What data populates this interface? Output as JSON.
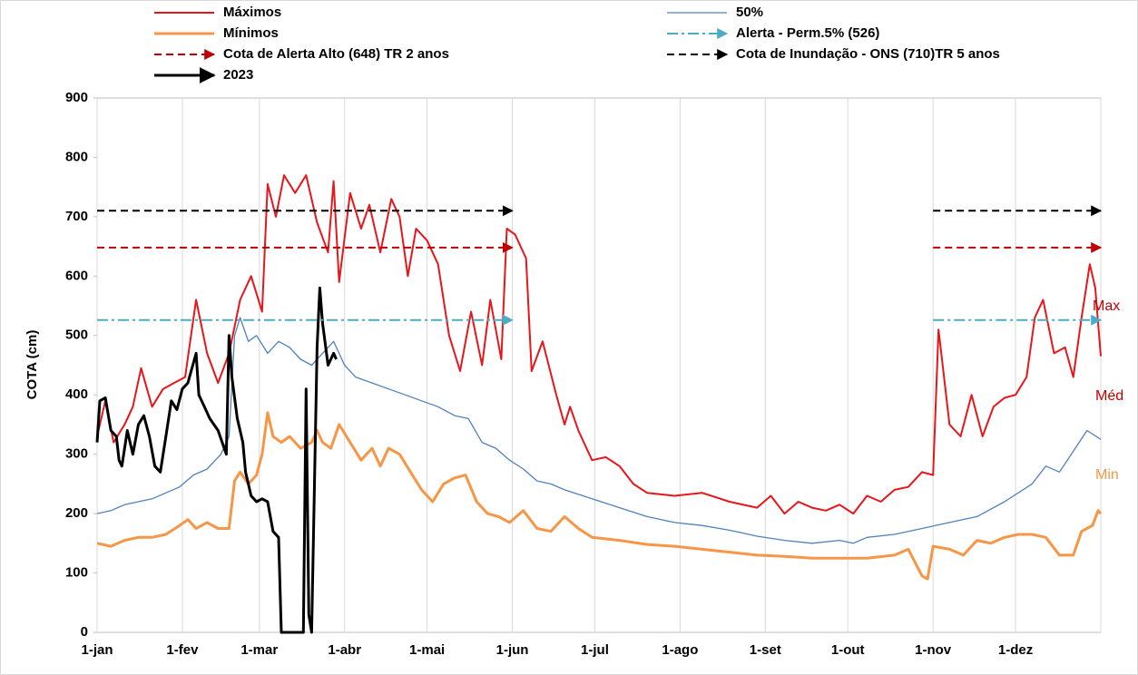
{
  "chart_data": {
    "type": "line",
    "y_label": "COTA (cm)",
    "xlim": [
      0,
      365
    ],
    "xticks": [
      {
        "value": 0,
        "label": "1-jan"
      },
      {
        "value": 31,
        "label": "1-fev"
      },
      {
        "value": 59,
        "label": "1-mar"
      },
      {
        "value": 90,
        "label": "1-abr"
      },
      {
        "value": 120,
        "label": "1-mai"
      },
      {
        "value": 151,
        "label": "1-jun"
      },
      {
        "value": 181,
        "label": "1-jul"
      },
      {
        "value": 212,
        "label": "1-ago"
      },
      {
        "value": 243,
        "label": "1-set"
      },
      {
        "value": 273,
        "label": "1-out"
      },
      {
        "value": 304,
        "label": "1-nov"
      },
      {
        "value": 334,
        "label": "1-dez"
      },
      {
        "value": 365,
        "label": ""
      }
    ],
    "ylim": [
      0,
      900
    ],
    "yticks": [
      0,
      100,
      200,
      300,
      400,
      500,
      600,
      700,
      800,
      900
    ],
    "grid": "vertical",
    "annotations": [
      "Max",
      "Méd",
      "Min"
    ],
    "series": [
      {
        "name": "Máximos",
        "color": "#e8161b",
        "dash": "solid",
        "linewidth": 2,
        "x": [
          0,
          3,
          6,
          10,
          13,
          16,
          20,
          24,
          28,
          32,
          36,
          40,
          44,
          48,
          52,
          56,
          60,
          62,
          65,
          68,
          72,
          76,
          80,
          84,
          86,
          88,
          92,
          96,
          99,
          103,
          107,
          110,
          113,
          116,
          120,
          124,
          128,
          132,
          136,
          140,
          143,
          147,
          149,
          152,
          156,
          158,
          162,
          167,
          170,
          172,
          175,
          180,
          185,
          190,
          195,
          200,
          210,
          220,
          230,
          240,
          245,
          250,
          255,
          260,
          265,
          270,
          275,
          280,
          285,
          290,
          295,
          300,
          304,
          306,
          310,
          314,
          318,
          322,
          326,
          330,
          334,
          338,
          341,
          344,
          348,
          352,
          355,
          358,
          361,
          363,
          365
        ],
        "values": [
          330,
          390,
          320,
          350,
          380,
          445,
          380,
          410,
          420,
          430,
          560,
          470,
          420,
          470,
          560,
          600,
          540,
          755,
          700,
          770,
          740,
          770,
          690,
          640,
          760,
          590,
          740,
          680,
          720,
          640,
          730,
          700,
          600,
          680,
          660,
          620,
          500,
          440,
          540,
          450,
          560,
          460,
          680,
          670,
          630,
          440,
          490,
          400,
          350,
          380,
          340,
          290,
          295,
          280,
          250,
          235,
          230,
          235,
          220,
          210,
          230,
          200,
          220,
          210,
          205,
          215,
          200,
          230,
          220,
          240,
          245,
          270,
          265,
          510,
          350,
          330,
          400,
          330,
          380,
          395,
          400,
          430,
          530,
          560,
          470,
          480,
          430,
          530,
          620,
          580,
          465
        ]
      },
      {
        "name": "50%",
        "color": "#4f81bd",
        "dash": "solid",
        "linewidth": 1.3,
        "x": [
          0,
          5,
          10,
          20,
          30,
          35,
          40,
          45,
          48,
          50,
          52,
          55,
          58,
          62,
          66,
          70,
          74,
          78,
          82,
          86,
          90,
          94,
          100,
          106,
          112,
          118,
          124,
          130,
          135,
          140,
          145,
          150,
          155,
          160,
          165,
          170,
          180,
          190,
          200,
          210,
          220,
          230,
          240,
          250,
          260,
          270,
          275,
          280,
          290,
          300,
          310,
          320,
          330,
          340,
          345,
          350,
          355,
          360,
          365
        ],
        "values": [
          200,
          205,
          215,
          225,
          245,
          265,
          275,
          300,
          330,
          500,
          530,
          490,
          500,
          470,
          490,
          480,
          460,
          450,
          470,
          490,
          450,
          430,
          420,
          410,
          400,
          390,
          380,
          365,
          360,
          320,
          310,
          290,
          275,
          255,
          250,
          240,
          225,
          210,
          195,
          185,
          180,
          172,
          162,
          155,
          150,
          155,
          150,
          160,
          165,
          175,
          185,
          195,
          220,
          250,
          280,
          270,
          305,
          340,
          325
        ]
      },
      {
        "name": "Mínimos",
        "color": "#f79646",
        "dash": "solid",
        "linewidth": 3,
        "x": [
          0,
          5,
          10,
          15,
          20,
          25,
          30,
          33,
          36,
          40,
          44,
          48,
          50,
          52,
          55,
          58,
          60,
          62,
          64,
          67,
          70,
          74,
          78,
          80,
          82,
          85,
          88,
          92,
          96,
          100,
          103,
          106,
          110,
          114,
          118,
          122,
          126,
          130,
          134,
          138,
          142,
          146,
          150,
          155,
          160,
          165,
          170,
          175,
          180,
          190,
          200,
          210,
          220,
          230,
          240,
          250,
          260,
          270,
          280,
          290,
          295,
          300,
          302,
          304,
          310,
          315,
          320,
          325,
          330,
          335,
          340,
          345,
          350,
          355,
          358,
          362,
          364,
          365
        ],
        "values": [
          150,
          145,
          155,
          160,
          160,
          165,
          180,
          190,
          175,
          185,
          175,
          175,
          255,
          270,
          250,
          265,
          300,
          370,
          330,
          320,
          330,
          310,
          320,
          340,
          320,
          310,
          350,
          320,
          290,
          310,
          280,
          310,
          300,
          270,
          240,
          220,
          250,
          260,
          265,
          220,
          200,
          195,
          185,
          205,
          175,
          170,
          195,
          175,
          160,
          155,
          148,
          145,
          140,
          135,
          130,
          128,
          125,
          125,
          125,
          130,
          140,
          95,
          90,
          145,
          140,
          130,
          155,
          150,
          160,
          165,
          165,
          160,
          130,
          130,
          170,
          180,
          205,
          200
        ]
      },
      {
        "name": "Alerta - Perm.5% (526)",
        "color": "#4bacc6",
        "dash": "dashdot",
        "linewidth": 2,
        "arrow": true,
        "x": [
          0,
          151,
          227,
          304,
          365
        ],
        "values": [
          526,
          526,
          null,
          526,
          526
        ]
      },
      {
        "name": "Cota de Alerta Alto (648) TR 2 anos",
        "color": "#c00000",
        "dash": "dashed",
        "linewidth": 2,
        "arrow": true,
        "x": [
          0,
          151,
          227,
          304,
          365
        ],
        "values": [
          648,
          648,
          null,
          648,
          648
        ]
      },
      {
        "name": "Cota de Inundação  - ONS (710)TR 5 anos",
        "color": "#000000",
        "dash": "dashed",
        "linewidth": 2,
        "arrow": true,
        "x": [
          0,
          151,
          227,
          304,
          365
        ],
        "values": [
          710,
          710,
          null,
          710,
          710
        ]
      },
      {
        "name": "2023",
        "color": "#000000",
        "dash": "solid",
        "linewidth": 3,
        "x": [
          0,
          1,
          3,
          5,
          7,
          8,
          9,
          11,
          13,
          15,
          17,
          19,
          21,
          23,
          25,
          27,
          29,
          31,
          33,
          36,
          37,
          39,
          41,
          44,
          47,
          48,
          49,
          51,
          53,
          54,
          56,
          58,
          60,
          62,
          64,
          66,
          67,
          74,
          75,
          76,
          77,
          78,
          80,
          81,
          82,
          84,
          86,
          87
        ],
        "values": [
          320,
          390,
          395,
          340,
          330,
          290,
          280,
          340,
          300,
          350,
          365,
          330,
          280,
          270,
          330,
          390,
          375,
          410,
          420,
          470,
          400,
          380,
          360,
          340,
          300,
          500,
          430,
          360,
          320,
          270,
          230,
          220,
          225,
          220,
          170,
          160,
          0,
          0,
          0,
          410,
          30,
          0,
          480,
          580,
          520,
          450,
          470,
          460
        ]
      }
    ]
  }
}
